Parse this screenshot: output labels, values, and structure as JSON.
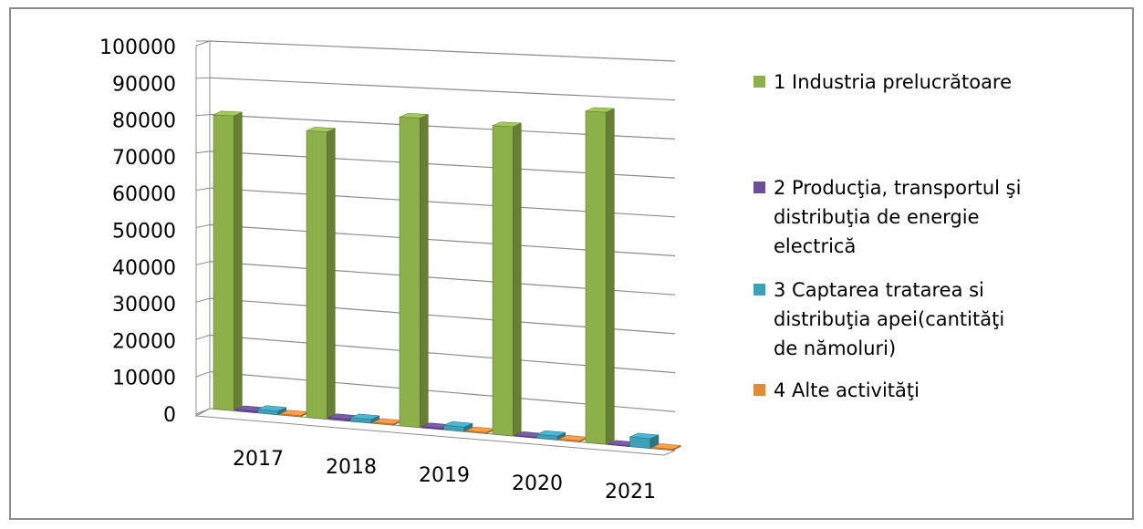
{
  "chart_data": {
    "type": "bar",
    "title": "",
    "xlabel": "",
    "ylabel": "",
    "categories": [
      "2017",
      "2018",
      "2019",
      "2020",
      "2021"
    ],
    "ylim": [
      0,
      100000
    ],
    "yticks": [
      "0",
      "10000",
      "20000",
      "30000",
      "40000",
      "50000",
      "60000",
      "70000",
      "80000",
      "90000",
      "100000"
    ],
    "grid": true,
    "legend_position": "right",
    "series": [
      {
        "name": "1 Industria prelucrătoare",
        "color": "#8db04a",
        "legend_lines": [
          "1 Industria prelucrătoare"
        ],
        "values": [
          80000,
          77000,
          82000,
          81000,
          86000
        ]
      },
      {
        "name": "2 Producţia, transportul şi distribuţia de energie electrică",
        "color": "#6b4f96",
        "legend_lines": [
          "2 Producţia, transportul şi",
          "distribuţia de energie",
          "electrică"
        ],
        "values": [
          400,
          500,
          300,
          200,
          100
        ]
      },
      {
        "name": "3 Captarea tratarea si distribuţia apei(cantităţi de nămoluri)",
        "color": "#3ea1b8",
        "legend_lines": [
          "3 Captarea tratarea si",
          "distribuţia apei(cantităţi",
          "de nămoluri)"
        ],
        "values": [
          1000,
          1000,
          1200,
          1000,
          2500
        ]
      },
      {
        "name": "4 Alte activităţi",
        "color": "#e08a3c",
        "legend_lines": [
          "4 Alte activităţi"
        ],
        "values": [
          300,
          300,
          300,
          300,
          300
        ]
      }
    ]
  }
}
